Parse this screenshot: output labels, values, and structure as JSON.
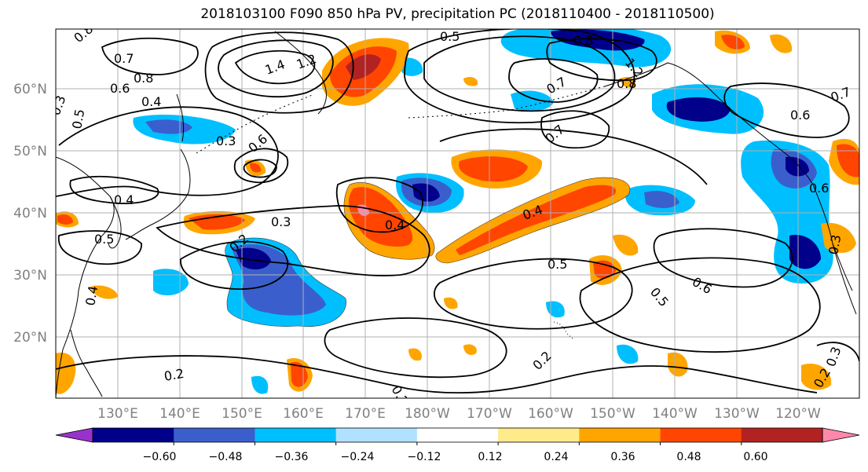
{
  "title": "2018103100 F090 850 hPa PV, precipitation PC (2018110400 - 2018110500)",
  "lat_labels": [
    "60°N",
    "50°N",
    "40°N",
    "30°N",
    "20°N"
  ],
  "lon_labels": [
    "130°E",
    "140°E",
    "150°E",
    "160°E",
    "170°E",
    "180°W",
    "170°W",
    "160°W",
    "150°W",
    "140°W",
    "130°W",
    "120°W"
  ],
  "contour_labels": [
    "0.8",
    "0.7",
    "1.4",
    "1.2",
    "0.8",
    "0.6",
    "0.5",
    "0.4",
    "0.3",
    "0.6",
    "0.4",
    "0.5",
    "0.3",
    "0.2",
    "0.3",
    "0.4",
    "0.4",
    "0.5",
    "0.6",
    "0.5",
    "0.2",
    "0.2",
    "0.2",
    "0.5",
    "0.8",
    "0.7",
    "0.8",
    "0.7",
    "1.2",
    "0.6",
    "0.7",
    "0.6",
    "0.3",
    "0.3",
    "0.2",
    "0.4"
  ],
  "colorbar": {
    "colors": [
      "#9932cc",
      "#00008b",
      "#3a5fcd",
      "#00bfff",
      "#b0e2ff",
      "#ffffff",
      "#ffeb8a",
      "#ffa500",
      "#ff4500",
      "#b22222",
      "#ff88aa"
    ],
    "tick_labels": [
      "−0.60",
      "−0.48",
      "−0.36",
      "−0.24",
      "−0.12",
      "0.12",
      "0.24",
      "0.36",
      "0.48",
      "0.60"
    ]
  },
  "fill_colors": {
    "neg_strong": "#00008b",
    "neg_mid": "#3a5fcd",
    "neg_weak": "#00bfff",
    "neg_faint": "#b0e2ff",
    "pos_faint": "#ffeb8a",
    "pos_weak": "#ffa500",
    "pos_mid": "#ff4500",
    "pos_strong": "#b22222",
    "pos_max": "#ff88aa"
  }
}
